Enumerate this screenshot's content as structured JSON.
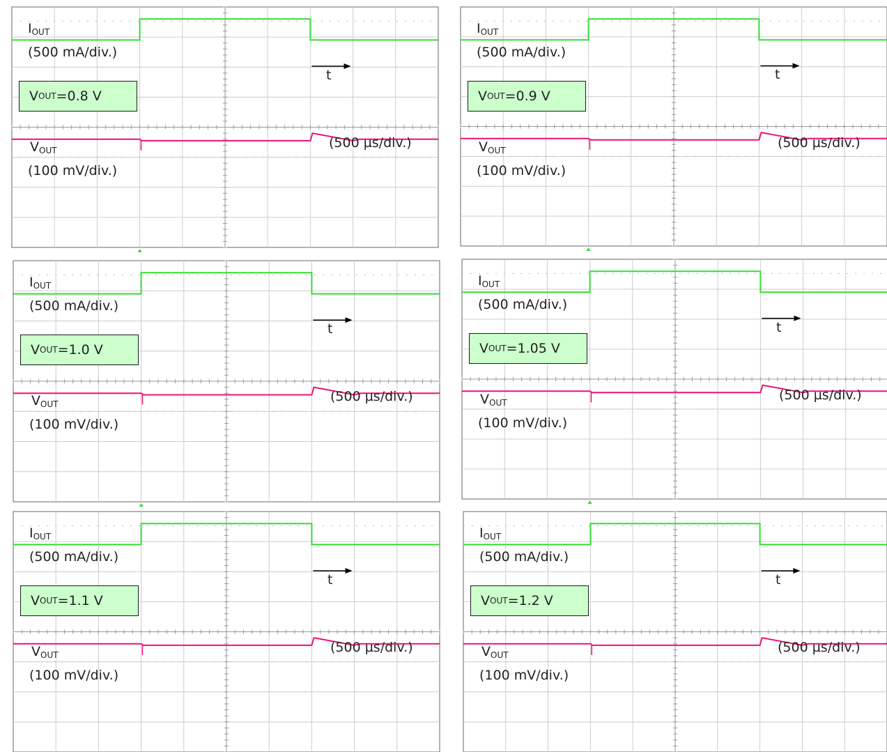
{
  "colors": {
    "current_trace": "#33dd33",
    "voltage_trace": "#ee1177",
    "grid": "#cccccc",
    "label_box": "#ccffcc"
  },
  "labels": {
    "iout_sym": "I",
    "iout_sub": "OUT",
    "iout_scale": "(500 mA/div.)",
    "vout_sym": "V",
    "vout_sub": "OUT",
    "vout_scale": "(100 mV/div.)",
    "time_sym": "t",
    "time_scale": "(500 µs/div.)"
  },
  "chart_data": [
    {
      "type": "line",
      "vout_prefix": "V",
      "vout_sub": "OUT",
      "vout_value": "=0.8 V",
      "x_unit": "div",
      "xlim": [
        0,
        10
      ],
      "ylim": [
        0,
        8
      ],
      "series": [
        {
          "x": [
            0,
            3,
            3,
            7,
            7,
            10
          ],
          "y": [
            6.9,
            6.9,
            7.6,
            7.6,
            6.9,
            6.9
          ]
        },
        {
          "x": [
            0,
            3,
            3.05,
            7,
            7.05,
            8,
            8.15,
            10
          ],
          "y": [
            3.6,
            3.6,
            3.55,
            3.55,
            3.8,
            3.55,
            3.6,
            3.6
          ]
        }
      ]
    },
    {
      "type": "line",
      "vout_prefix": "V",
      "vout_sub": "OUT",
      "vout_value": "=0.9 V",
      "x_unit": "div",
      "xlim": [
        0,
        10
      ],
      "ylim": [
        0,
        8
      ],
      "series": [
        {
          "x": [
            0,
            3,
            3,
            7,
            7,
            10
          ],
          "y": [
            6.9,
            6.9,
            7.6,
            7.6,
            6.9,
            6.9
          ]
        },
        {
          "x": [
            0,
            3,
            3.05,
            7,
            7.05,
            8,
            8.15,
            10
          ],
          "y": [
            3.6,
            3.6,
            3.55,
            3.55,
            3.8,
            3.55,
            3.6,
            3.6
          ]
        }
      ]
    },
    {
      "type": "line",
      "vout_prefix": "V",
      "vout_sub": "OUT",
      "vout_value": "=1.0 V",
      "x_unit": "div",
      "xlim": [
        0,
        10
      ],
      "ylim": [
        0,
        8
      ],
      "series": [
        {
          "x": [
            0,
            3,
            3,
            7,
            7,
            10
          ],
          "y": [
            6.9,
            6.9,
            7.6,
            7.6,
            6.9,
            6.9
          ]
        },
        {
          "x": [
            0,
            3,
            3.05,
            7,
            7.05,
            8,
            8.15,
            10
          ],
          "y": [
            3.6,
            3.6,
            3.55,
            3.55,
            3.8,
            3.55,
            3.6,
            3.6
          ]
        }
      ]
    },
    {
      "type": "line",
      "vout_prefix": "V",
      "vout_sub": "OUT",
      "vout_value": "=1.05 V",
      "x_unit": "div",
      "xlim": [
        0,
        10
      ],
      "ylim": [
        0,
        8
      ],
      "series": [
        {
          "x": [
            0,
            3,
            3,
            7,
            7,
            10
          ],
          "y": [
            6.9,
            6.9,
            7.6,
            7.6,
            6.9,
            6.9
          ]
        },
        {
          "x": [
            0,
            3,
            3.05,
            7,
            7.05,
            8,
            8.15,
            10
          ],
          "y": [
            3.6,
            3.6,
            3.55,
            3.55,
            3.8,
            3.55,
            3.6,
            3.6
          ]
        }
      ]
    },
    {
      "type": "line",
      "vout_prefix": "V",
      "vout_sub": "OUT",
      "vout_value": "=1.1 V",
      "x_unit": "div",
      "xlim": [
        0,
        10
      ],
      "ylim": [
        0,
        8
      ],
      "series": [
        {
          "x": [
            0,
            3,
            3,
            7,
            7,
            10
          ],
          "y": [
            6.9,
            6.9,
            7.6,
            7.6,
            6.9,
            6.9
          ]
        },
        {
          "x": [
            0,
            3,
            3.05,
            7,
            7.05,
            8,
            8.15,
            10
          ],
          "y": [
            3.6,
            3.6,
            3.55,
            3.55,
            3.8,
            3.55,
            3.6,
            3.6
          ]
        }
      ]
    },
    {
      "type": "line",
      "vout_prefix": "V",
      "vout_sub": "OUT",
      "vout_value": "=1.2 V",
      "x_unit": "div",
      "xlim": [
        0,
        10
      ],
      "ylim": [
        0,
        8
      ],
      "series": [
        {
          "x": [
            0,
            3,
            3,
            7,
            7,
            10
          ],
          "y": [
            6.9,
            6.9,
            7.6,
            7.6,
            6.9,
            6.9
          ]
        },
        {
          "x": [
            0,
            3,
            3.05,
            7,
            7.05,
            8,
            8.15,
            10
          ],
          "y": [
            3.6,
            3.6,
            3.55,
            3.55,
            3.8,
            3.55,
            3.6,
            3.6
          ]
        }
      ]
    }
  ]
}
